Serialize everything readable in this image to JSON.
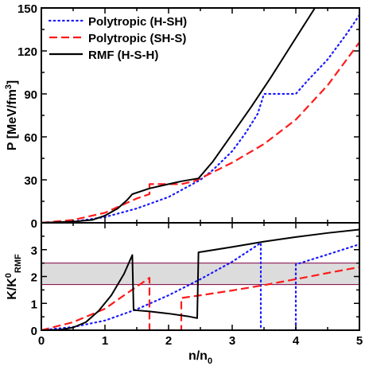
{
  "chart_data": [
    {
      "type": "line",
      "xlim": [
        0,
        5
      ],
      "ylim": [
        0,
        150
      ],
      "xticks": [
        0,
        1,
        2,
        3,
        4,
        5
      ],
      "yticks": [
        0,
        30,
        60,
        90,
        120,
        150
      ],
      "ytick_labels": [
        "0",
        "30",
        "60",
        "90",
        "120",
        "150"
      ],
      "ylabel": {
        "main": "P [MeV/fm",
        "sup": "3",
        "close": "]"
      },
      "legend_position": "top-left",
      "series": [
        {
          "name": "Polytropic (H-SH)",
          "color": "#1a1aff",
          "style": "dotted",
          "points": [
            [
              0.0,
              0
            ],
            [
              0.5,
              0.8
            ],
            [
              1.0,
              4
            ],
            [
              1.5,
              10
            ],
            [
              2.0,
              18
            ],
            [
              2.5,
              30
            ],
            [
              2.7,
              37
            ],
            [
              3.0,
              50
            ],
            [
              3.2,
              62
            ],
            [
              3.4,
              76
            ],
            [
              3.5,
              90
            ],
            [
              4.0,
              90
            ],
            [
              4.2,
              100
            ],
            [
              4.5,
              114
            ],
            [
              4.8,
              132
            ],
            [
              5.0,
              145
            ]
          ]
        },
        {
          "name": "Polytropic (SH-S)",
          "color": "#ff1a1a",
          "style": "dashed",
          "points": [
            [
              0.0,
              0
            ],
            [
              0.5,
              2
            ],
            [
              1.0,
              7
            ],
            [
              1.5,
              17
            ],
            [
              1.7,
              20
            ],
            [
              1.7,
              27
            ],
            [
              2.2,
              27
            ],
            [
              2.4,
              29
            ],
            [
              2.5,
              31
            ],
            [
              3.0,
              42
            ],
            [
              3.5,
              55
            ],
            [
              4.0,
              72
            ],
            [
              4.5,
              96
            ],
            [
              5.0,
              126
            ]
          ]
        },
        {
          "name": "RMF (H-S-H)",
          "color": "#000000",
          "style": "solid",
          "points": [
            [
              0.0,
              0
            ],
            [
              0.5,
              0.8
            ],
            [
              0.8,
              2
            ],
            [
              1.0,
              5
            ],
            [
              1.2,
              10
            ],
            [
              1.35,
              16
            ],
            [
              1.43,
              20
            ],
            [
              1.7,
              24
            ],
            [
              2.0,
              27
            ],
            [
              2.2,
              29
            ],
            [
              2.47,
              31
            ],
            [
              2.7,
              43
            ],
            [
              3.0,
              62
            ],
            [
              3.3,
              81
            ],
            [
              3.6,
              101
            ],
            [
              3.9,
              122
            ],
            [
              4.2,
              143
            ],
            [
              4.3,
              150
            ]
          ]
        }
      ]
    },
    {
      "type": "line",
      "xlim": [
        0,
        5
      ],
      "ylim": [
        0,
        4
      ],
      "xticks": [
        0,
        1,
        2,
        3,
        4,
        5
      ],
      "xtick_labels": [
        "0",
        "1",
        "2",
        "3",
        "4",
        "5"
      ],
      "yticks": [
        0,
        1,
        2,
        3
      ],
      "ytick_labels": [
        "0",
        "1",
        "2",
        "3"
      ],
      "xlabel": {
        "main": "n/n",
        "sub": "0"
      },
      "ylabel": {
        "main": "K/K",
        "sup": "0",
        "sub": "RMF"
      },
      "band": {
        "y_range": [
          1.7,
          2.5
        ],
        "fill": "#dcdcdc",
        "edge_color": "#800040"
      },
      "series": [
        {
          "name": "Polytropic (H-SH)",
          "color": "#1a1aff",
          "style": "dotted",
          "points": [
            [
              0.0,
              0
            ],
            [
              0.5,
              0.12
            ],
            [
              1.0,
              0.36
            ],
            [
              1.5,
              0.78
            ],
            [
              2.0,
              1.3
            ],
            [
              2.5,
              1.9
            ],
            [
              3.0,
              2.55
            ],
            [
              3.45,
              3.25
            ],
            [
              3.45,
              0
            ],
            [
              4.0,
              0
            ],
            [
              4.0,
              2.45
            ],
            [
              4.5,
              2.82
            ],
            [
              5.0,
              3.2
            ]
          ]
        },
        {
          "name": "Polytropic (SH-S)",
          "color": "#ff1a1a",
          "style": "dashed",
          "points": [
            [
              0.0,
              0
            ],
            [
              0.5,
              0.3
            ],
            [
              1.0,
              0.8
            ],
            [
              1.3,
              1.3
            ],
            [
              1.7,
              1.95
            ],
            [
              1.7,
              0
            ],
            [
              2.2,
              0
            ],
            [
              2.2,
              1.2
            ],
            [
              2.5,
              1.3
            ],
            [
              3.0,
              1.48
            ],
            [
              3.5,
              1.68
            ],
            [
              4.0,
              1.9
            ],
            [
              4.5,
              2.13
            ],
            [
              5.0,
              2.35
            ]
          ]
        },
        {
          "name": "RMF (H-S-H)",
          "color": "#000000",
          "style": "solid",
          "points": [
            [
              0.0,
              0
            ],
            [
              0.3,
              0.02
            ],
            [
              0.5,
              0.1
            ],
            [
              0.7,
              0.3
            ],
            [
              0.9,
              0.72
            ],
            [
              1.1,
              1.3
            ],
            [
              1.3,
              2.1
            ],
            [
              1.43,
              2.8
            ],
            [
              1.45,
              0.75
            ],
            [
              1.7,
              0.7
            ],
            [
              2.0,
              0.62
            ],
            [
              2.3,
              0.52
            ],
            [
              2.45,
              0.45
            ],
            [
              2.47,
              2.9
            ],
            [
              3.0,
              3.1
            ],
            [
              3.5,
              3.3
            ],
            [
              4.0,
              3.47
            ],
            [
              4.5,
              3.62
            ],
            [
              5.0,
              3.75
            ]
          ]
        }
      ]
    }
  ]
}
